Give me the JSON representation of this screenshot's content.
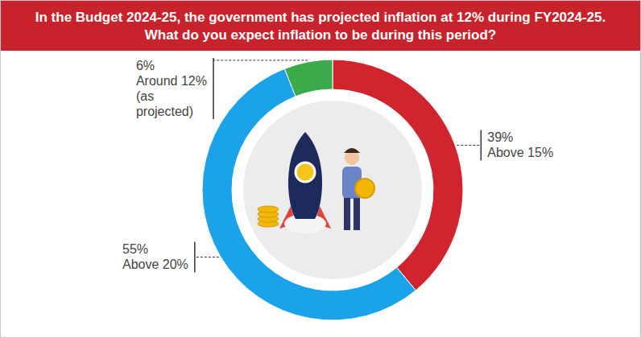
{
  "chart_data": {
    "type": "donut",
    "title": "In the Budget 2024-25, the government has projected inflation at 12% during FY2024-25. What do you expect inflation to be during this period?",
    "categories": [
      "Above 15%",
      "Above 20%",
      "Around 12% (as projected)"
    ],
    "values": [
      39,
      55,
      6
    ],
    "value_labels": [
      "39%",
      "55%",
      "6%"
    ],
    "colors": [
      "#d0252e",
      "#1aa3e8",
      "#3aaa4a"
    ],
    "data_labels": true
  }
}
